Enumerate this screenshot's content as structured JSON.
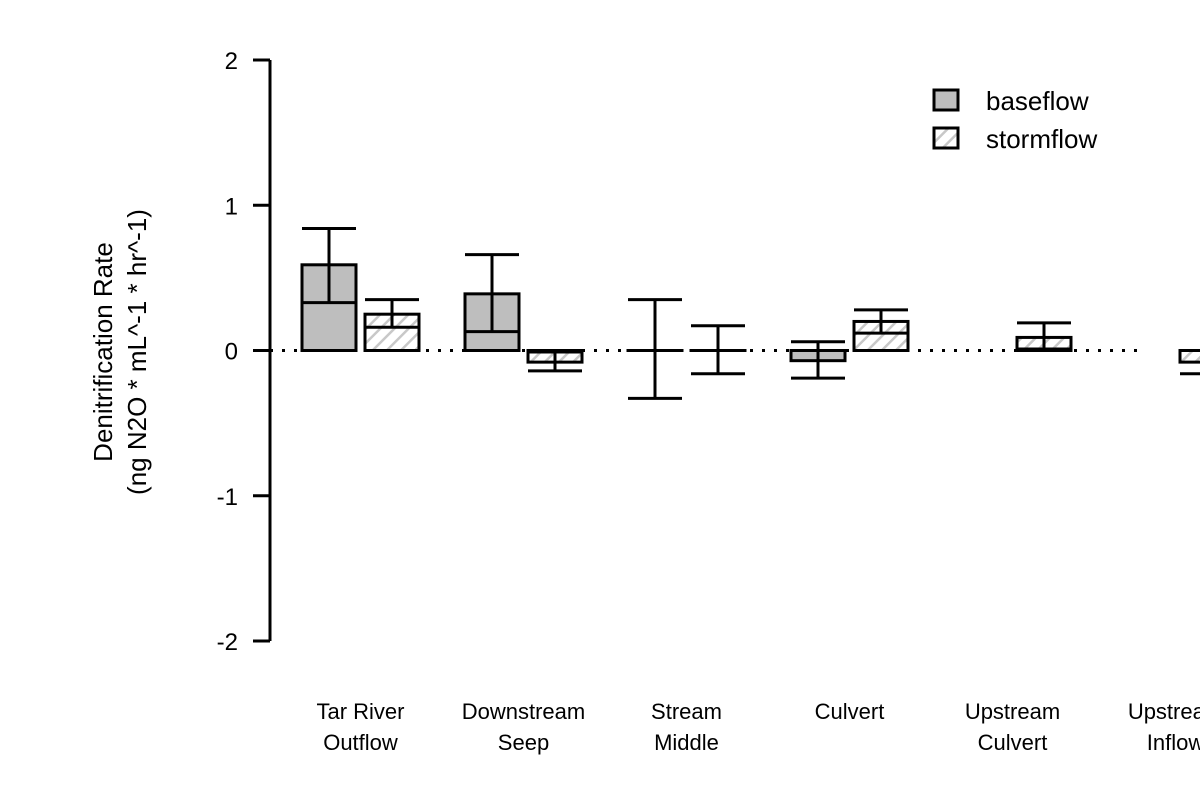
{
  "chart_data": {
    "type": "bar",
    "title": "",
    "xlabel": "",
    "ylabel": [
      "Denitrification Rate",
      "(ng N2O * mL^-1 * hr^-1)"
    ],
    "ylim": [
      -2,
      2
    ],
    "yticks": [
      2,
      1,
      0,
      -1,
      -2
    ],
    "categories": [
      [
        "Tar River",
        "Outflow"
      ],
      [
        "Downstream",
        "Seep"
      ],
      [
        "Stream",
        "Middle"
      ],
      [
        "Culvert",
        ""
      ],
      [
        "Upstream",
        "Culvert"
      ],
      [
        "Upstream",
        "Inflow"
      ]
    ],
    "series": [
      {
        "name": "baseflow",
        "fill": "#bebebe",
        "pattern": "solid",
        "values": [
          0.59,
          0.39,
          0.0,
          -0.07,
          null,
          null
        ],
        "err_low": [
          0.33,
          0.13,
          -0.33,
          -0.19,
          null,
          null
        ],
        "err_high": [
          0.84,
          0.66,
          0.35,
          0.06,
          null,
          null
        ]
      },
      {
        "name": "stormflow",
        "fill": "#bebebe",
        "pattern": "hatched",
        "values": [
          0.25,
          -0.08,
          0.0,
          0.2,
          0.09,
          -0.08
        ],
        "err_low": [
          0.16,
          -0.14,
          -0.16,
          0.12,
          0.01,
          -0.16
        ],
        "err_high": [
          0.35,
          -0.01,
          0.17,
          0.28,
          0.19,
          0.0
        ]
      }
    ],
    "reference_line": {
      "y": 0,
      "style": "dotted"
    },
    "legend": {
      "position": "top-right",
      "entries": [
        "baseflow",
        "stormflow"
      ]
    }
  }
}
